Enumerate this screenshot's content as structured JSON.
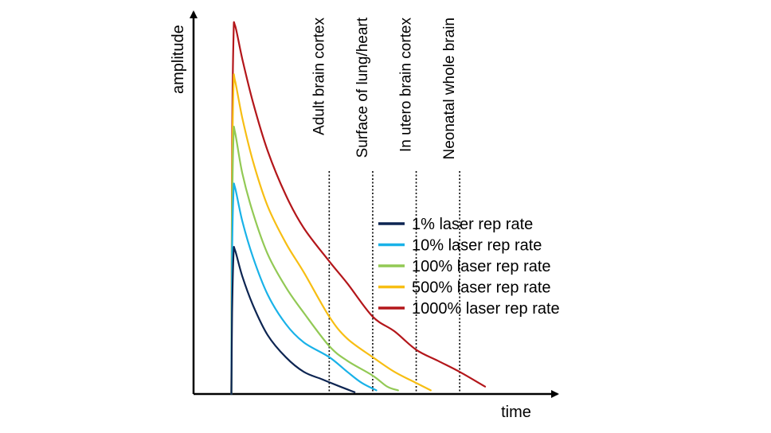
{
  "chart_data": {
    "type": "line",
    "title": "",
    "xlabel": "time",
    "ylabel": "amplitude",
    "grid": false,
    "legend": "center-right",
    "xlim": [
      0,
      100
    ],
    "ylim": [
      0,
      100
    ],
    "vertical_markers": [
      {
        "label": "Adult brain cortex",
        "x": 37
      },
      {
        "label": "Surface of lung/heart",
        "x": 49
      },
      {
        "label": "In utero brain cortex",
        "x": 61
      },
      {
        "label": "Neonatal whole brain",
        "x": 73
      }
    ],
    "series": [
      {
        "name": "1% laser rep rate",
        "color": "#0d2552",
        "peak": 39,
        "points": [
          [
            10,
            0
          ],
          [
            10.2,
            22
          ],
          [
            10.6,
            38
          ],
          [
            11,
            39
          ],
          [
            13,
            32
          ],
          [
            16,
            24
          ],
          [
            20,
            16
          ],
          [
            25,
            10
          ],
          [
            30,
            6
          ],
          [
            35,
            4
          ],
          [
            40,
            2
          ],
          [
            44,
            0.5
          ]
        ]
      },
      {
        "name": "10% laser rep rate",
        "color": "#19b2e8",
        "peak": 56,
        "points": [
          [
            10,
            0
          ],
          [
            10.2,
            38
          ],
          [
            10.6,
            55
          ],
          [
            11,
            56
          ],
          [
            13,
            47
          ],
          [
            16,
            37
          ],
          [
            20,
            27
          ],
          [
            25,
            19
          ],
          [
            30,
            14
          ],
          [
            37,
            10
          ],
          [
            42,
            6
          ],
          [
            46,
            3
          ],
          [
            50,
            1
          ]
        ]
      },
      {
        "name": "100% laser rep rate",
        "color": "#92c955",
        "peak": 71,
        "points": [
          [
            10,
            0
          ],
          [
            10.2,
            48
          ],
          [
            10.6,
            70
          ],
          [
            11,
            71
          ],
          [
            13,
            60
          ],
          [
            16,
            49
          ],
          [
            20,
            38
          ],
          [
            25,
            29
          ],
          [
            30,
            22
          ],
          [
            37,
            13
          ],
          [
            42,
            9
          ],
          [
            49,
            5
          ],
          [
            53,
            2
          ],
          [
            56,
            1
          ]
        ]
      },
      {
        "name": "500% laser rep rate",
        "color": "#f7be13",
        "peak": 85,
        "points": [
          [
            10,
            0
          ],
          [
            10.2,
            58
          ],
          [
            10.6,
            84
          ],
          [
            11,
            85
          ],
          [
            13,
            75
          ],
          [
            16,
            63
          ],
          [
            20,
            51
          ],
          [
            25,
            41
          ],
          [
            30,
            33
          ],
          [
            37,
            21
          ],
          [
            42,
            15
          ],
          [
            49,
            10
          ],
          [
            55,
            6
          ],
          [
            61,
            3
          ],
          [
            65,
            1
          ]
        ]
      },
      {
        "name": "1000% laser rep rate",
        "color": "#b3161a",
        "peak": 100,
        "points": [
          [
            10,
            0
          ],
          [
            10.2,
            68
          ],
          [
            10.6,
            97
          ],
          [
            11,
            100
          ],
          [
            13,
            91
          ],
          [
            16,
            79
          ],
          [
            20,
            66
          ],
          [
            25,
            54
          ],
          [
            30,
            45
          ],
          [
            37,
            36
          ],
          [
            42,
            30
          ],
          [
            49,
            21
          ],
          [
            55,
            17
          ],
          [
            61,
            12
          ],
          [
            67,
            9
          ],
          [
            73,
            6
          ],
          [
            80,
            2
          ]
        ]
      }
    ]
  }
}
